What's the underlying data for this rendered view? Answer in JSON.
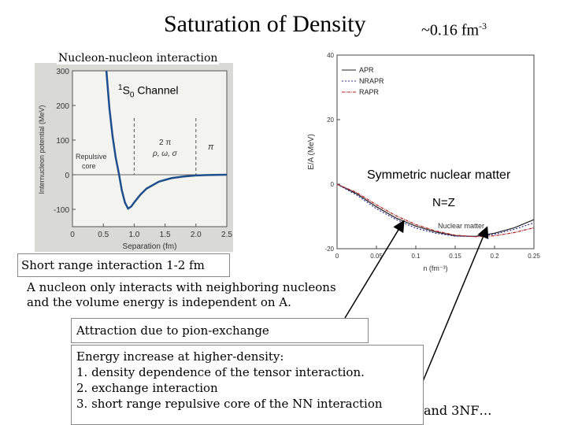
{
  "header": {
    "title": "Saturation of Density",
    "density_value": "~0.16 fm",
    "density_exp": "-3"
  },
  "left_plot": {
    "label": "Nucleon-nucleon interaction",
    "channel_pre": "1",
    "channel_s": "S",
    "channel_sub": "0",
    "channel_post": " Channel",
    "ylabel": "Internucleon potential (MeV)",
    "xlabel": "Separation (fm)",
    "xticks": [
      "0",
      "0.5",
      "1.0",
      "1.5",
      "2.0",
      "2.5"
    ],
    "yticks": [
      "300",
      "200",
      "100",
      "0",
      "-100"
    ],
    "region_label_1": "Repulsive",
    "region_label_2": "core",
    "region_2pi": "2 π",
    "region_mesons": "ρ, ω, σ",
    "region_pi": "π"
  },
  "right_plot": {
    "ylabel": "E/A (MeV)",
    "xlabel": "n (fm⁻³)",
    "yticks": [
      "40",
      "20",
      "0",
      "-20"
    ],
    "xticks": [
      "0",
      "0.05",
      "0.1",
      "0.15",
      "0.2",
      "0.25"
    ],
    "legend": [
      "APR",
      "NRAPR",
      "RAPR"
    ],
    "curve_label": "Nuclear matter",
    "annotation_symmetric": "Symmetric nuclear matter",
    "annotation_nz": "N=Z"
  },
  "chart_data": [
    {
      "type": "line",
      "xlabel": "Separation (fm)",
      "ylabel": "Internucleon potential (MeV)",
      "xlim": [
        0,
        2.5
      ],
      "ylim": [
        -150,
        300
      ],
      "series": [
        {
          "x": [
            0.55,
            0.6,
            0.65,
            0.7,
            0.75,
            0.8,
            0.85,
            0.9,
            0.95,
            1.0,
            1.1,
            1.2,
            1.4,
            1.6,
            1.8,
            2.0,
            2.2,
            2.5
          ],
          "values": [
            300,
            190,
            110,
            50,
            5,
            -45,
            -80,
            -98,
            -92,
            -80,
            -58,
            -40,
            -20,
            -10,
            -5,
            -2,
            -1,
            0
          ]
        }
      ]
    },
    {
      "type": "line",
      "xlabel": "n (fm⁻³)",
      "ylabel": "E/A (MeV)",
      "xlim": [
        0,
        0.25
      ],
      "ylim": [
        -20,
        40
      ],
      "series": [
        {
          "name": "APR",
          "x": [
            0,
            0.025,
            0.05,
            0.075,
            0.1,
            0.125,
            0.15,
            0.175,
            0.2,
            0.225,
            0.25
          ],
          "values": [
            0,
            -3,
            -7,
            -10.5,
            -13,
            -14.8,
            -16,
            -16.2,
            -15.2,
            -13.5,
            -11
          ]
        },
        {
          "name": "NRAPR",
          "x": [
            0,
            0.025,
            0.05,
            0.075,
            0.1,
            0.125,
            0.15,
            0.175,
            0.2,
            0.225,
            0.25
          ],
          "values": [
            0,
            -3.4,
            -7.6,
            -11,
            -13.6,
            -15.2,
            -16.1,
            -16.2,
            -15.5,
            -14,
            -12
          ]
        },
        {
          "name": "RAPR",
          "x": [
            0,
            0.025,
            0.05,
            0.075,
            0.1,
            0.125,
            0.15,
            0.175,
            0.2,
            0.225,
            0.25
          ],
          "values": [
            0,
            -2.6,
            -6.4,
            -9.8,
            -12.5,
            -14.5,
            -15.8,
            -16.3,
            -16,
            -15,
            -13.5
          ]
        }
      ]
    }
  ],
  "boxes": {
    "short_range": "Short range interaction 1-2 fm",
    "nucleon_line1": "A nucleon only interacts with neighboring nucleons",
    "nucleon_line2": "and the volume energy is independent on A.",
    "attraction": "Attraction due to pion-exchange",
    "energy_line0": "Energy increase at higher-density:",
    "energy_line1": "1. density dependence of the tensor interaction.",
    "energy_line2": "2. exchange interaction",
    "energy_line3": "3. short range repulsive core of the NN interaction",
    "and3nf": "and 3NF…"
  },
  "colors": {
    "left_plot_bg": "#d9d9d6",
    "potential_curve": "#1f4e8c",
    "apr": "#222222",
    "nrapr": "#333399",
    "rapr": "#b22222"
  }
}
